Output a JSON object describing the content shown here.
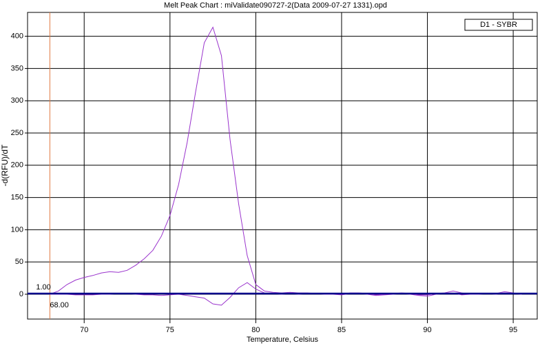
{
  "chart_data": {
    "type": "line",
    "title": "Melt Peak Chart : miValidate090727-2(Data 2009-07-27 1331).opd",
    "x_label": "Temperature, Celsius",
    "y_label": "-d(RFU)/dT",
    "x": [
      68,
      68.5,
      69,
      69.5,
      70,
      70.5,
      71,
      71.5,
      72,
      72.5,
      73,
      73.5,
      74,
      74.5,
      75,
      75.5,
      76,
      76.5,
      77,
      77.5,
      78,
      78.5,
      79,
      79.5,
      80,
      80.5,
      81,
      81.5,
      82,
      82.5,
      83,
      83.5,
      84,
      84.5,
      85,
      85.5,
      86,
      86.5,
      87,
      87.5,
      88,
      88.5,
      89,
      89.5,
      90,
      90.5,
      91,
      91.5,
      92,
      92.5,
      93,
      93.5,
      94,
      94.5,
      95,
      95.5
    ],
    "series": [
      {
        "name": "D1 - SYBR",
        "color": "#9932cc",
        "values": [
          0,
          5,
          15,
          22,
          26,
          29,
          33,
          35,
          34,
          37,
          45,
          55,
          68,
          90,
          122,
          170,
          235,
          315,
          390,
          414,
          370,
          240,
          140,
          60,
          15,
          5,
          3,
          2,
          3,
          2,
          2,
          1,
          1,
          1,
          0,
          2,
          2,
          1,
          -1,
          0,
          1,
          2,
          1,
          -1,
          -1,
          1,
          2,
          5,
          2,
          0,
          1,
          1,
          1,
          4,
          2,
          0
        ]
      },
      {
        "color": "#9932cc",
        "values": [
          0,
          0,
          0,
          -1,
          -1,
          -1,
          0,
          0,
          1,
          1,
          0,
          -1,
          -1,
          -2,
          -1,
          0,
          -2,
          -4,
          -6,
          -15,
          -17,
          -5,
          10,
          18,
          8,
          2,
          1,
          0,
          1,
          0,
          1,
          1,
          0,
          0,
          -1,
          1,
          1,
          0,
          -2,
          -1,
          0,
          1,
          0,
          -2,
          -3,
          0,
          1,
          2,
          -1,
          0,
          0,
          1,
          0,
          2,
          1,
          0
        ]
      }
    ],
    "threshold": {
      "value": 1,
      "label": "1.00",
      "color": "#00008b"
    },
    "marker": {
      "value": 68,
      "label": "68.00",
      "color": "#e07a40"
    },
    "xlim": [
      66.7,
      96.4
    ],
    "ylim": [
      -38.5,
      437
    ],
    "xticks": [
      70,
      75,
      80,
      85,
      90,
      95
    ],
    "yticks": [
      0,
      50,
      100,
      150,
      200,
      250,
      300,
      350,
      400
    ],
    "grid": true,
    "legend": "upper right"
  }
}
